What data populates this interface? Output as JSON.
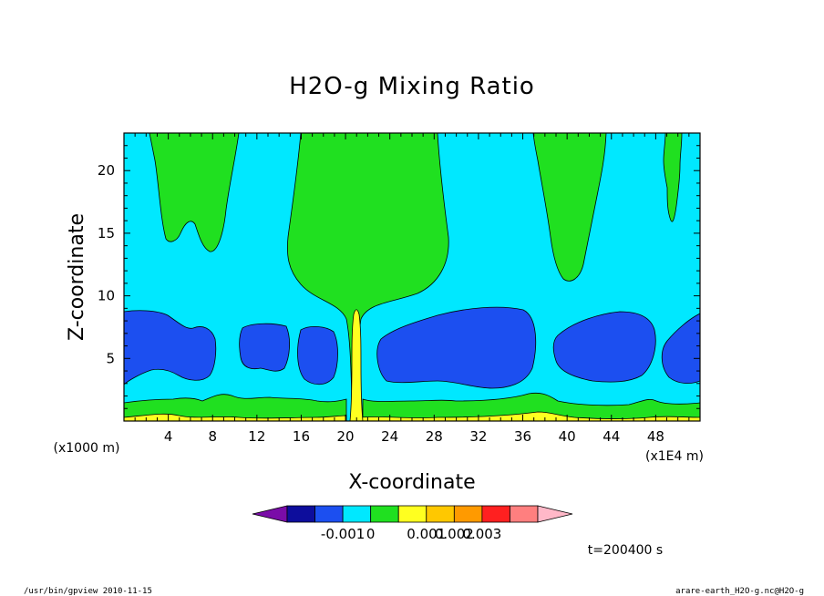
{
  "chart_data": {
    "type": "heatmap",
    "title": "H2O-g Mixing Ratio",
    "xlabel": "X-coordinate",
    "ylabel": "Z-coordinate",
    "x_unit": "(x1000 m)",
    "x_scale_note": "(x1E4 m)",
    "xlim": [
      0,
      52
    ],
    "ylim": [
      0,
      23
    ],
    "x_ticks": [
      4,
      8,
      12,
      16,
      20,
      24,
      28,
      32,
      36,
      40,
      44,
      48
    ],
    "y_ticks": [
      5,
      10,
      15,
      20
    ],
    "colorbar": {
      "colors": [
        "#7a0ca8",
        "#0d0d9c",
        "#1c4ff0",
        "#00e8ff",
        "#20e020",
        "#ffff20",
        "#ffc800",
        "#ff9a00",
        "#ff2020",
        "#ff7f7f",
        "#ffb8c8"
      ],
      "tick_labels": [
        "-0.001",
        "0",
        "0.001",
        "0.002",
        "0.003"
      ]
    },
    "time_label": "t=200400 s"
  },
  "footer": {
    "left": "/usr/bin/gpview  2010-11-15",
    "right": "arare-earth_H2O-g.nc@H2O-g"
  }
}
